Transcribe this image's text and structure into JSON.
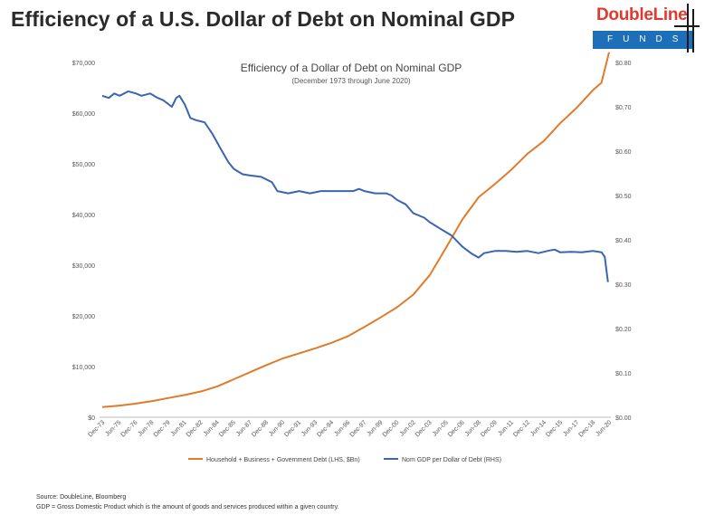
{
  "header": {
    "title": "Efficiency of a U.S. Dollar of Debt on Nominal GDP"
  },
  "logo": {
    "word": "DoubleLine",
    "sub": "FUNDS"
  },
  "chart_data": {
    "type": "line",
    "title": "Efficiency of a Dollar of Debt on Nominal GDP",
    "subtitle": "(December 1973 through June 2020)",
    "categories": [
      "Dec-73",
      "Jun-75",
      "Dec-76",
      "Jun-78",
      "Dec-79",
      "Jun-81",
      "Dec-82",
      "Jun-84",
      "Dec-85",
      "Jun-87",
      "Dec-88",
      "Jun-90",
      "Dec-91",
      "Jun-93",
      "Dec-94",
      "Jun-96",
      "Dec-97",
      "Jun-99",
      "Dec-00",
      "Jun-02",
      "Dec-03",
      "Jun-05",
      "Dec-06",
      "Jun-08",
      "Dec-09",
      "Jun-11",
      "Dec-12",
      "Jun-14",
      "Dec-15",
      "Jun-17",
      "Dec-18",
      "Jun-20"
    ],
    "left_axis": {
      "label": "Household + Business + Government Debt (LHS, $Bn)",
      "ylim": [
        0,
        70000
      ],
      "ticks": [
        "$0",
        "$10,000",
        "$20,000",
        "$30,000",
        "$40,000",
        "$50,000",
        "$60,000",
        "$70,000"
      ]
    },
    "right_axis": {
      "label": "Nom GDP per Dollar of Debt (RHS)",
      "ylim": [
        0,
        0.8
      ],
      "ticks": [
        "$0.00",
        "$0.10",
        "$0.20",
        "$0.30",
        "$0.40",
        "$0.50",
        "$0.60",
        "$0.70",
        "$0.80"
      ]
    },
    "series": [
      {
        "name": "Household + Business + Government Debt (LHS, $Bn)",
        "axis": "left",
        "color": "#e07b2a",
        "x": [
          1973.9,
          1975.5,
          1977,
          1978.5,
          1980,
          1981.5,
          1983,
          1984.5,
          1986,
          1987.5,
          1989,
          1990.5,
          1992,
          1993.5,
          1995,
          1996.5,
          1998,
          1999.5,
          2001,
          2002.5,
          2004,
          2005.5,
          2007,
          2008.5,
          2010,
          2011.5,
          2013,
          2014.5,
          2016,
          2017.5,
          2019,
          2019.8,
          2020.5
        ],
        "values": [
          2000,
          2300,
          2700,
          3200,
          3800,
          4400,
          5100,
          6100,
          7500,
          8900,
          10300,
          11600,
          12600,
          13600,
          14700,
          16000,
          17800,
          19700,
          21700,
          24200,
          28000,
          33400,
          39000,
          43400,
          46000,
          48800,
          52000,
          54500,
          58000,
          61000,
          64500,
          66000,
          72000
        ]
      },
      {
        "name": "Nom GDP per Dollar of Debt (RHS)",
        "axis": "right",
        "color": "#3a65b0",
        "x": [
          1973.9,
          1974.5,
          1975,
          1975.5,
          1976.3,
          1977,
          1977.5,
          1978.3,
          1979,
          1979.5,
          1980.3,
          1980.7,
          1981,
          1981.5,
          1982,
          1982.5,
          1983.3,
          1984,
          1984.8,
          1985.5,
          1986,
          1986.8,
          1987.5,
          1988.5,
          1989.5,
          1990,
          1991,
          1992,
          1993,
          1994,
          1995,
          1996,
          1997,
          1997.5,
          1998,
          1999,
          2000,
          2000.5,
          2001,
          2001.8,
          2002.5,
          2003.5,
          2004,
          2005,
          2006,
          2007,
          2007.8,
          2008.5,
          2009,
          2010,
          2011,
          2012,
          2013,
          2014,
          2015,
          2015.5,
          2016,
          2017,
          2018,
          2019,
          2019.8,
          2020.1,
          2020.4
        ],
        "values": [
          0.725,
          0.72,
          0.73,
          0.725,
          0.735,
          0.73,
          0.725,
          0.73,
          0.72,
          0.715,
          0.7,
          0.72,
          0.725,
          0.705,
          0.675,
          0.67,
          0.665,
          0.64,
          0.605,
          0.575,
          0.56,
          0.548,
          0.545,
          0.542,
          0.53,
          0.51,
          0.505,
          0.51,
          0.505,
          0.51,
          0.51,
          0.51,
          0.51,
          0.515,
          0.51,
          0.505,
          0.505,
          0.5,
          0.49,
          0.48,
          0.46,
          0.45,
          0.44,
          0.425,
          0.41,
          0.385,
          0.37,
          0.36,
          0.37,
          0.375,
          0.375,
          0.373,
          0.375,
          0.37,
          0.376,
          0.378,
          0.372,
          0.373,
          0.372,
          0.375,
          0.372,
          0.362,
          0.305
        ]
      }
    ],
    "xlim": [
      1973.9,
      2020.5
    ]
  },
  "footnotes": {
    "source": "Source: DoubleLine, Bloomberg",
    "gdp_note": "GDP = Gross Domestic Product which is the amount of goods and services produced within a given country."
  }
}
